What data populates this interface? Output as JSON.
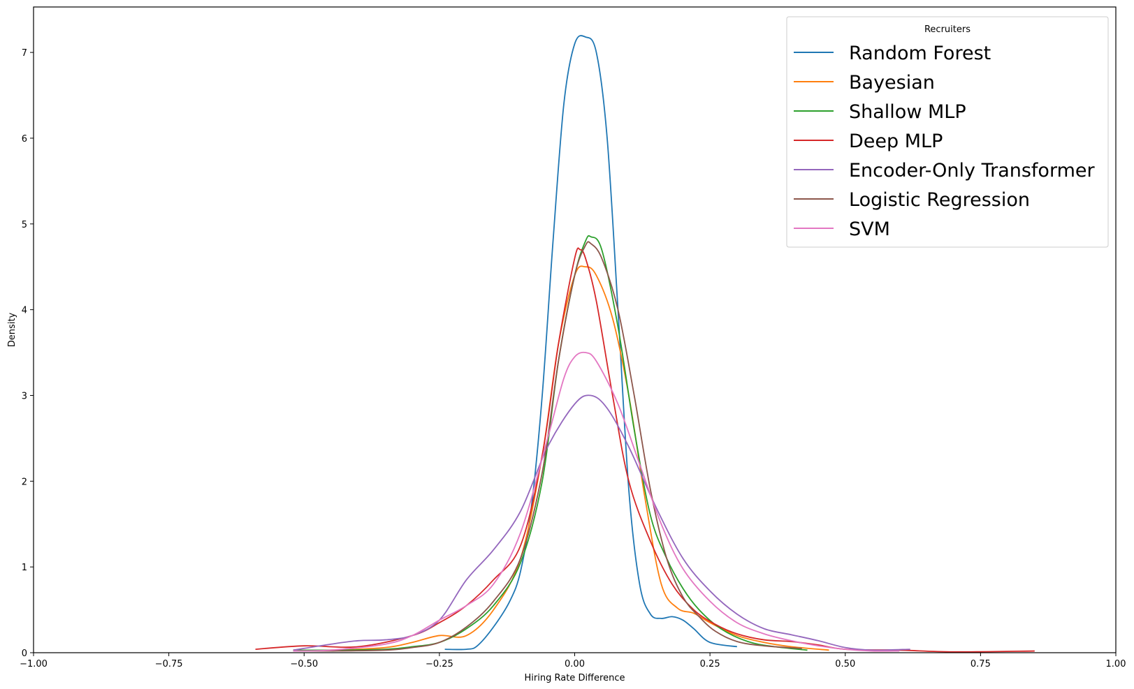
{
  "chart_data": {
    "type": "line",
    "xlabel": "Hiring Rate Difference",
    "ylabel": "Density",
    "xlim": [
      -1.0,
      1.0
    ],
    "ylim": [
      0,
      7.53
    ],
    "xticks": [
      -1.0,
      -0.75,
      -0.5,
      -0.25,
      0.0,
      0.25,
      0.5,
      0.75,
      1.0
    ],
    "xtick_labels": [
      "−1.00",
      "−0.75",
      "−0.50",
      "−0.25",
      "0.00",
      "0.25",
      "0.50",
      "0.75",
      "1.00"
    ],
    "yticks": [
      0,
      1,
      2,
      3,
      4,
      5,
      6,
      7
    ],
    "ytick_labels": [
      "0",
      "1",
      "2",
      "3",
      "4",
      "5",
      "6",
      "7"
    ],
    "grid": false,
    "legend": {
      "title": "Recruiters",
      "placement": "top-right"
    },
    "series": [
      {
        "name": "Random Forest",
        "color": "#1f77b4",
        "x": [
          -0.24,
          -0.2,
          -0.18,
          -0.15,
          -0.12,
          -0.1,
          -0.08,
          -0.06,
          -0.04,
          -0.02,
          0.0,
          0.02,
          0.04,
          0.06,
          0.08,
          0.1,
          0.12,
          0.14,
          0.16,
          0.18,
          0.2,
          0.22,
          0.25,
          0.3
        ],
        "y": [
          0.04,
          0.04,
          0.08,
          0.3,
          0.6,
          0.95,
          1.7,
          3.0,
          4.8,
          6.4,
          7.1,
          7.18,
          7.0,
          6.0,
          4.0,
          1.9,
          0.8,
          0.45,
          0.4,
          0.42,
          0.38,
          0.28,
          0.12,
          0.07
        ]
      },
      {
        "name": "Bayesian",
        "color": "#ff7f0e",
        "x": [
          -0.52,
          -0.45,
          -0.35,
          -0.3,
          -0.25,
          -0.2,
          -0.15,
          -0.1,
          -0.06,
          -0.03,
          0.0,
          0.02,
          0.04,
          0.07,
          0.1,
          0.13,
          0.16,
          0.19,
          0.22,
          0.25,
          0.3,
          0.35,
          0.4,
          0.47
        ],
        "y": [
          0.03,
          0.03,
          0.06,
          0.12,
          0.2,
          0.2,
          0.5,
          1.1,
          2.3,
          3.6,
          4.4,
          4.5,
          4.4,
          3.9,
          3.0,
          1.8,
          0.8,
          0.52,
          0.46,
          0.35,
          0.2,
          0.12,
          0.07,
          0.03
        ]
      },
      {
        "name": "Shallow MLP",
        "color": "#2ca02c",
        "x": [
          -0.52,
          -0.45,
          -0.35,
          -0.3,
          -0.25,
          -0.2,
          -0.15,
          -0.1,
          -0.06,
          -0.03,
          0.0,
          0.02,
          0.03,
          0.05,
          0.08,
          0.11,
          0.14,
          0.17,
          0.2,
          0.23,
          0.27,
          0.32,
          0.37,
          0.43
        ],
        "y": [
          0.03,
          0.03,
          0.04,
          0.07,
          0.12,
          0.28,
          0.55,
          1.05,
          2.0,
          3.4,
          4.4,
          4.8,
          4.85,
          4.7,
          3.8,
          2.6,
          1.6,
          1.1,
          0.75,
          0.5,
          0.28,
          0.13,
          0.07,
          0.03
        ]
      },
      {
        "name": "Deep MLP",
        "color": "#d62728",
        "x": [
          -0.59,
          -0.5,
          -0.4,
          -0.3,
          -0.25,
          -0.2,
          -0.15,
          -0.1,
          -0.06,
          -0.03,
          0.0,
          0.01,
          0.02,
          0.04,
          0.07,
          0.1,
          0.14,
          0.18,
          0.22,
          0.26,
          0.3,
          0.35,
          0.4,
          0.45,
          0.5,
          0.6,
          0.7,
          0.85
        ],
        "y": [
          0.04,
          0.08,
          0.07,
          0.2,
          0.35,
          0.55,
          0.85,
          1.25,
          2.3,
          3.6,
          4.6,
          4.7,
          4.6,
          4.1,
          3.0,
          2.0,
          1.3,
          0.8,
          0.5,
          0.33,
          0.22,
          0.15,
          0.13,
          0.09,
          0.04,
          0.03,
          0.01,
          0.02
        ]
      },
      {
        "name": "Encoder-Only Transformer",
        "color": "#9467bd",
        "x": [
          -0.52,
          -0.45,
          -0.4,
          -0.35,
          -0.3,
          -0.25,
          -0.2,
          -0.15,
          -0.1,
          -0.05,
          0.0,
          0.03,
          0.06,
          0.1,
          0.15,
          0.2,
          0.25,
          0.3,
          0.35,
          0.4,
          0.45,
          0.5,
          0.55,
          0.62
        ],
        "y": [
          0.03,
          0.1,
          0.14,
          0.15,
          0.2,
          0.38,
          0.85,
          1.2,
          1.65,
          2.4,
          2.9,
          3.0,
          2.85,
          2.4,
          1.7,
          1.1,
          0.72,
          0.45,
          0.28,
          0.21,
          0.14,
          0.06,
          0.03,
          0.04
        ]
      },
      {
        "name": "Logistic Regression",
        "color": "#8c564b",
        "x": [
          -0.52,
          -0.45,
          -0.35,
          -0.3,
          -0.25,
          -0.2,
          -0.15,
          -0.1,
          -0.06,
          -0.03,
          0.0,
          0.02,
          0.03,
          0.05,
          0.08,
          0.11,
          0.14,
          0.17,
          0.2,
          0.23,
          0.26,
          0.3,
          0.35,
          0.42
        ],
        "y": [
          0.02,
          0.02,
          0.03,
          0.06,
          0.12,
          0.3,
          0.6,
          1.1,
          2.1,
          3.4,
          4.4,
          4.75,
          4.77,
          4.6,
          4.0,
          3.0,
          1.9,
          1.1,
          0.65,
          0.42,
          0.25,
          0.13,
          0.08,
          0.05
        ]
      },
      {
        "name": "SVM",
        "color": "#e377c2",
        "x": [
          -0.52,
          -0.45,
          -0.35,
          -0.3,
          -0.25,
          -0.2,
          -0.15,
          -0.1,
          -0.05,
          -0.02,
          0.0,
          0.02,
          0.04,
          0.08,
          0.12,
          0.16,
          0.2,
          0.25,
          0.3,
          0.35,
          0.4,
          0.45,
          0.5,
          0.55,
          0.6
        ],
        "y": [
          0.02,
          0.03,
          0.1,
          0.2,
          0.38,
          0.55,
          0.8,
          1.4,
          2.5,
          3.2,
          3.45,
          3.5,
          3.4,
          2.9,
          2.2,
          1.5,
          0.98,
          0.6,
          0.35,
          0.22,
          0.14,
          0.08,
          0.04,
          0.02,
          0.02
        ]
      }
    ]
  }
}
